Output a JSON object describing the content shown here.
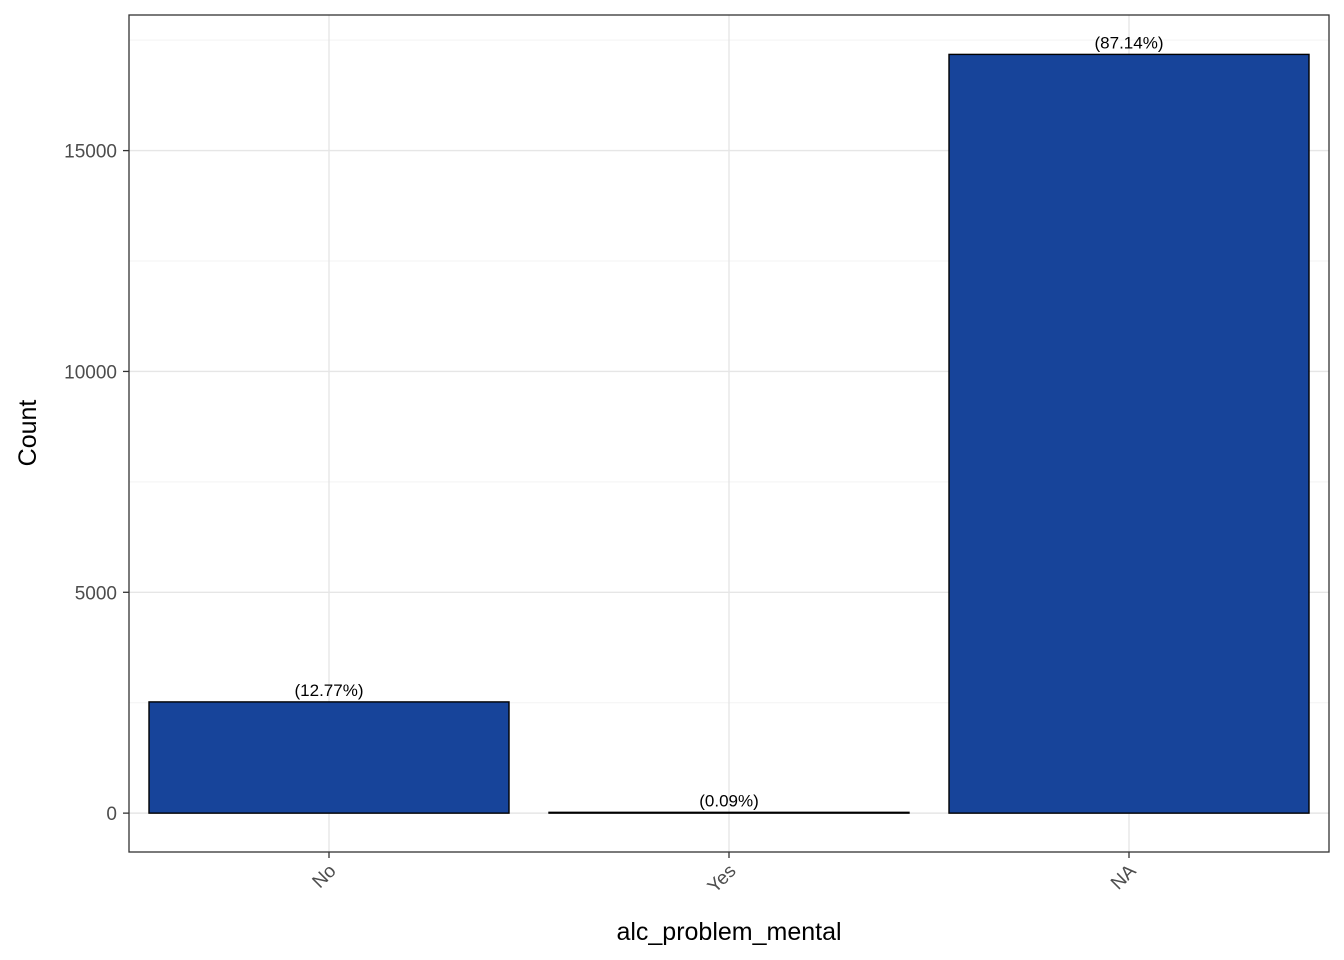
{
  "chart_data": {
    "type": "bar",
    "title": "",
    "xlabel": "alc_problem_mental",
    "ylabel": "Count",
    "categories": [
      "No",
      "Yes",
      "NA"
    ],
    "values": [
      2518,
      18,
      17178
    ],
    "data_labels": [
      "(12.77%)",
      "(0.09%)",
      "(87.14%)"
    ],
    "ylim": [
      -880,
      18070
    ],
    "yticks": [
      0,
      5000,
      10000,
      15000
    ],
    "ytick_labels": [
      "0",
      "5000",
      "10000",
      "15000"
    ],
    "grid": true,
    "legend": "none",
    "x_tick_rotation_deg": 45
  },
  "colors": {
    "bar_fill": "#17449A",
    "bar_stroke": "#000000",
    "grid_major": "#E6E6E6",
    "grid_minor": "#F3F3F3",
    "panel_border": "#333333",
    "tick_text": "#4D4D4D",
    "background": "#FFFFFF"
  }
}
